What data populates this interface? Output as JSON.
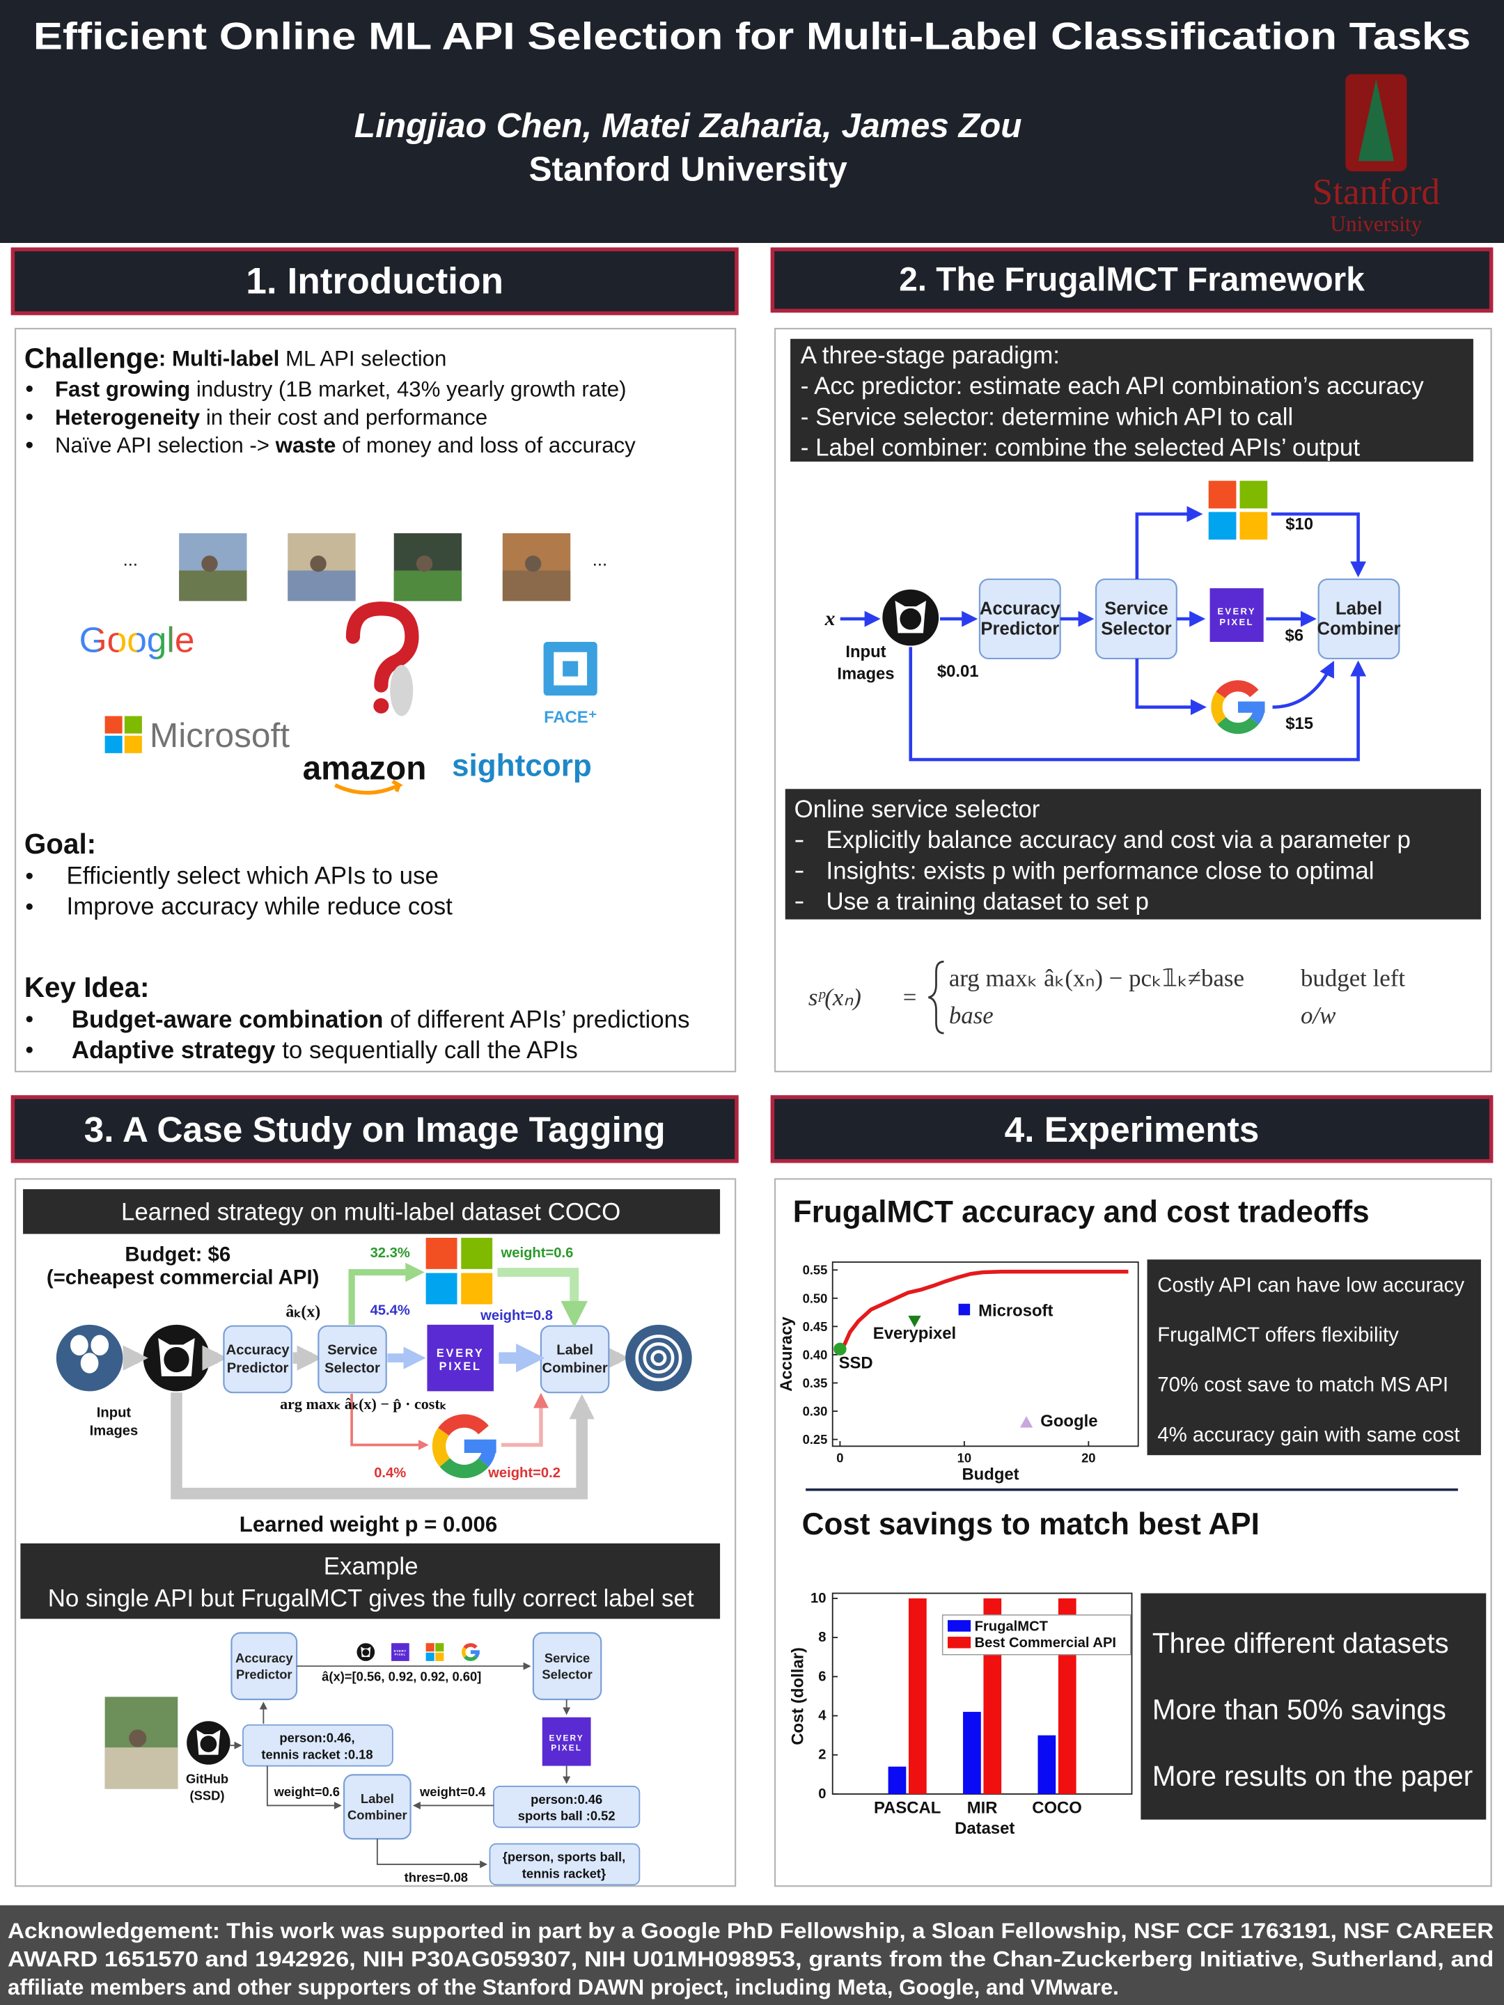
{
  "header": {
    "title": "Efficient Online ML API Selection for Multi-Label Classification Tasks",
    "authors": "Lingjiao Chen, Matei Zaharia, James Zou",
    "affiliation": "Stanford University",
    "logo_word": "Stanford",
    "logo_sub": "University"
  },
  "introduction": {
    "heading": "1. Introduction",
    "challenge": [
      {
        "strong": "Challenge"
      },
      {
        "strong": ": Multi-label"
      },
      {
        "text": " ML API selection"
      }
    ],
    "challenge_bullets": [
      [
        {
          "strong": "Fast growing"
        },
        {
          "text": " industry (1B market, 43% yearly growth rate)"
        }
      ],
      [
        {
          "strong": "Heterogeneity"
        },
        {
          "text": " in their cost and performance"
        }
      ],
      [
        {
          "text": "Naïve API selection -> "
        },
        {
          "strong": "waste"
        },
        {
          "text": " of money and loss of accuracy"
        }
      ]
    ],
    "ellipsis": "...",
    "logos": {
      "google": "Google",
      "microsoft": "Microsoft",
      "amazon": "amazon",
      "sightcorp": "sightcorp",
      "faceplus": "FACE⁺"
    },
    "goal": {
      "label": "Goal:",
      "bullets": [
        "Efficiently select which APIs to use",
        "Improve accuracy while reduce cost"
      ]
    },
    "key_idea": {
      "label": "Key Idea:",
      "bullets": [
        [
          {
            "strong": "Budget-aware combination"
          },
          {
            "text": " of different APIs’ predictions"
          }
        ],
        [
          {
            "strong": "Adaptive strategy"
          },
          {
            "text": " to sequentially call the APIs"
          }
        ]
      ]
    }
  },
  "framework": {
    "heading": "2. The FrugalMCT Framework",
    "paradigm": [
      "A three-stage paradigm:",
      "- Acc predictor: estimate each API combination’s accuracy",
      "- Service selector: determine which API to call",
      "- Label combiner: combine the selected APIs’ output"
    ],
    "diagram": {
      "x": "x",
      "input": [
        "Input",
        "Images"
      ],
      "acc": [
        "Accuracy",
        "Predictor"
      ],
      "sel": [
        "Service",
        "Selector"
      ],
      "comb": [
        "Label",
        "Combiner"
      ],
      "cost_acc": "$0.01",
      "cost_ms": "$10",
      "cost_ep": "$6",
      "cost_g": "$15"
    },
    "online": {
      "title": "Online service selector",
      "bullets": [
        "Explicitly balance accuracy and cost via a parameter p",
        "Insights: exists p with performance close to optimal",
        "Use a training dataset to set p"
      ]
    },
    "formula": {
      "lhs": "sᵖ(xₙ)",
      "eq": "=",
      "case1": "arg maxₖ âₖ(xₙ) − pcₖ𝟙ₖ≠base",
      "cond1": "budget left",
      "case2": "base",
      "cond2": "o/w"
    }
  },
  "api_logos": {
    "everypixel": [
      "EVERY",
      "PIXEL"
    ]
  },
  "case_study": {
    "heading": "3. A Case Study on Image Tagging",
    "banner": "Learned strategy on multi-label dataset COCO",
    "budget": "Budget: $6",
    "budget_note": "(=cheapest commercial API)",
    "acc_hat": "âₖ(x)",
    "acc": [
      "Accuracy",
      "Predictor"
    ],
    "sel": [
      "Service",
      "Selector"
    ],
    "comb": [
      "Label",
      "Combiner"
    ],
    "input": [
      "Input",
      "Images"
    ],
    "ms_acc": "32.3%",
    "ms_weight": "weight=0.6",
    "ep_acc": "45.4%",
    "ep_weight": "weight=0.8",
    "g_acc": "0.4%",
    "g_weight": "weight=0.2",
    "rule": "arg maxₖ âₖ(x) − p̂ · costₖ",
    "learned": "Learned weight p = 0.006",
    "example": {
      "title": "Example",
      "text": "No single API but FrugalMCT gives the fully correct label set"
    },
    "example_diagram": {
      "acc": [
        "Accuracy",
        "Predictor"
      ],
      "sel": [
        "Service",
        "Selector"
      ],
      "comb": [
        "Label",
        "Combiner"
      ],
      "acc_vector": "â(x)=[0.56, 0.92, 0.92, 0.60]",
      "ssd": [
        "GitHub",
        "(SSD)"
      ],
      "ssd_out": [
        "person:0.46,",
        "tennis racket :0.18"
      ],
      "ep_out": [
        "person:0.46",
        "sports ball :0.52"
      ],
      "w1": "weight=0.6",
      "w2": "weight=0.4",
      "result": [
        "{person, sports ball,",
        "tennis racket}"
      ],
      "thres": "thres=0.08"
    }
  },
  "experiments": {
    "heading": "4. Experiments",
    "tradeoff": {
      "type": "scatter",
      "title": "FrugalMCT accuracy and cost tradeoffs",
      "xlabel": "Budget",
      "ylabel": "Accuracy",
      "xlim": [
        -0.6,
        24
      ],
      "ylim": [
        0.238,
        0.564
      ],
      "xticks": [
        0,
        10,
        20
      ],
      "yticks": [
        0.25,
        {
          "value": 0.3,
          "label": "0.30"
        },
        0.35,
        {
          "value": 0.4,
          "label": "0.40"
        },
        0.45,
        {
          "value": 0.5,
          "label": "0.50"
        },
        0.55
      ],
      "curve": {
        "color": "#e41a1c",
        "x": [
          0,
          0.4,
          0.8,
          1.5,
          2.5,
          3.5,
          4.5,
          5.5,
          6.5,
          7.5,
          8.5,
          9.5,
          10.5,
          11.5,
          13,
          16,
          20,
          23.2
        ],
        "values": [
          0.405,
          0.42,
          0.44,
          0.46,
          0.48,
          0.49,
          0.5,
          0.51,
          0.515,
          0.522,
          0.53,
          0.537,
          0.543,
          0.546,
          0.547,
          0.547,
          0.547,
          0.547
        ]
      },
      "points": [
        {
          "name": "SSD",
          "color": "#2ca02c",
          "marker": "circle",
          "x": 0,
          "value": 0.41
        },
        {
          "name": "Everypixel",
          "color": "#1a7f1a",
          "marker": "triangle-down",
          "x": 6,
          "value": 0.46
        },
        {
          "name": "Microsoft",
          "color": "#1010ee",
          "marker": "square",
          "x": 10,
          "value": 0.48
        },
        {
          "name": "Google",
          "color": "#c9a6e0",
          "marker": "triangle-up",
          "x": 15,
          "value": 0.28
        }
      ],
      "notes": [
        "Costly API can have low accuracy",
        "FrugalMCT offers flexibility",
        "70% cost save to match MS API",
        "4% accuracy gain with same cost"
      ]
    },
    "savings": {
      "type": "bar",
      "title": "Cost savings to match best API",
      "xlabel": "Dataset",
      "ylabel": "Cost (dollar)",
      "categories": [
        "PASCAL",
        "MIR",
        "COCO"
      ],
      "series": [
        {
          "name": "FrugalMCT",
          "color": "#0a0af5",
          "values": [
            1.4,
            4.2,
            3.0
          ]
        },
        {
          "name": "Best Commercial API",
          "color": "#f01010",
          "values": [
            10,
            10,
            10
          ]
        }
      ],
      "ylim": [
        0,
        10
      ],
      "yticks": [
        0,
        2,
        4,
        6,
        8,
        10
      ],
      "notes": [
        "Three different datasets",
        "More than 50% savings",
        "More results on the paper"
      ]
    }
  },
  "acknowledgement": [
    "Acknowledgement: This work was supported in part by a Google PhD Fellowship, a Sloan Fellowship, NSF CCF 1763191, NSF CAREER",
    "AWARD 1651570 and 1942926, NIH P30AG059307, NIH U01MH098953, grants from the Chan-Zuckerberg Initiative, Sutherland, and",
    "affiliate members and other supporters of the Stanford DAWN project, including Meta, Google, and VMware."
  ]
}
